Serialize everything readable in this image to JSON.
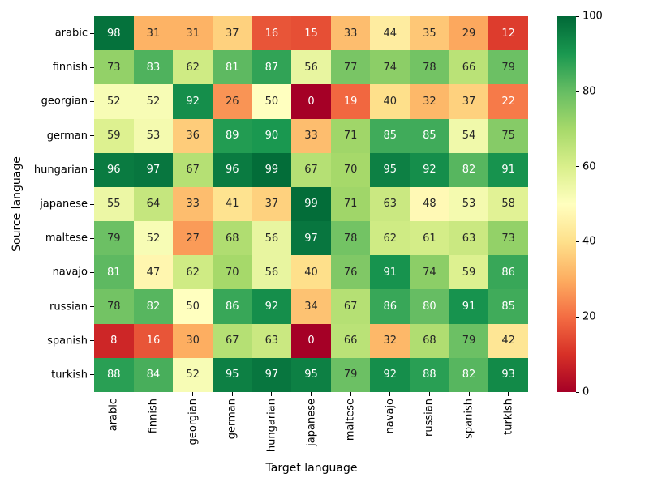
{
  "chart_data": {
    "type": "heatmap",
    "title": "",
    "xlabel": "Target language",
    "ylabel": "Source language",
    "categories_x": [
      "arabic",
      "finnish",
      "georgian",
      "german",
      "hungarian",
      "japanese",
      "maltese",
      "navajo",
      "russian",
      "spanish",
      "turkish"
    ],
    "categories_y": [
      "arabic",
      "finnish",
      "georgian",
      "german",
      "hungarian",
      "japanese",
      "maltese",
      "navajo",
      "russian",
      "spanish",
      "turkish"
    ],
    "values": [
      [
        98,
        31,
        31,
        37,
        16,
        15,
        33,
        44,
        35,
        29,
        12
      ],
      [
        73,
        83,
        62,
        81,
        87,
        56,
        77,
        74,
        78,
        66,
        79
      ],
      [
        52,
        52,
        92,
        26,
        50,
        0,
        19,
        40,
        32,
        37,
        22
      ],
      [
        59,
        53,
        36,
        89,
        90,
        33,
        71,
        85,
        85,
        54,
        75
      ],
      [
        96,
        97,
        67,
        96,
        99,
        67,
        70,
        95,
        92,
        82,
        91
      ],
      [
        55,
        64,
        33,
        41,
        37,
        99,
        71,
        63,
        48,
        53,
        58
      ],
      [
        79,
        52,
        27,
        68,
        56,
        97,
        78,
        62,
        61,
        63,
        73
      ],
      [
        81,
        47,
        62,
        70,
        56,
        40,
        76,
        91,
        74,
        59,
        86
      ],
      [
        78,
        82,
        50,
        86,
        92,
        34,
        67,
        86,
        80,
        91,
        85
      ],
      [
        8,
        16,
        30,
        67,
        63,
        0,
        66,
        32,
        68,
        79,
        42
      ],
      [
        88,
        84,
        52,
        95,
        97,
        95,
        79,
        92,
        88,
        82,
        93
      ]
    ],
    "vmin": 0,
    "vmax": 100,
    "grid": false,
    "annotated": true,
    "colormap": "RdYlGn",
    "colormap_stops": [
      "#a50026",
      "#d73027",
      "#f46d43",
      "#fdae61",
      "#fee08b",
      "#ffffbf",
      "#d9ef8b",
      "#a6d96a",
      "#66bd63",
      "#1a9850",
      "#006837"
    ],
    "colorbar_ticks": [
      0,
      20,
      40,
      60,
      80,
      100
    ],
    "annotation_text_colors": {
      "light": "#ffffff",
      "dark": "#262626"
    },
    "background": "#ffffff"
  }
}
